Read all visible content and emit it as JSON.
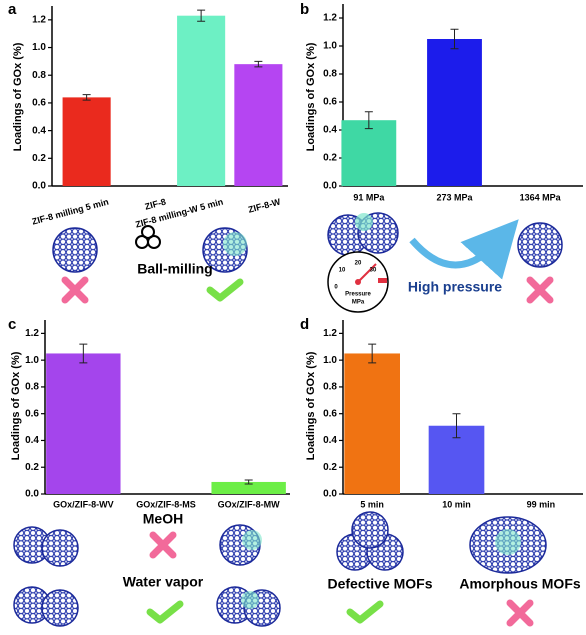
{
  "chart_data": [
    {
      "type": "bar",
      "panel_label": "a",
      "y_label": "Loadings of GOx (%)",
      "categories": [
        "ZIF-8 milling 5 min",
        "ZIF-8",
        "ZIF-8 milling-W 5 min",
        "ZIF-8-W"
      ],
      "values": [
        0.64,
        0,
        1.23,
        0.88
      ],
      "errors": [
        0.02,
        0,
        0.04,
        0.02
      ],
      "colors": [
        "#ea2a1e",
        "#ea2a1e",
        "#6df0c4",
        "#b545f2"
      ],
      "ylim": [
        0,
        1.3
      ],
      "yticks": [
        {
          "value": 0,
          "label": "0.0"
        },
        0.2,
        0.4,
        0.6,
        0.8,
        {
          "value": 1,
          "label": "1.0"
        },
        1.2
      ],
      "annotations": [
        "Ball-milling"
      ]
    },
    {
      "type": "bar",
      "panel_label": "b",
      "y_label": "Loadings of GOx (%)",
      "categories": [
        "91 MPa",
        "273 MPa",
        "1364 MPa"
      ],
      "values": [
        0.47,
        1.05,
        0
      ],
      "errors": [
        0.06,
        0.07,
        0
      ],
      "colors": [
        "#3fd8a4",
        "#1c1ceb",
        "#1c1ceb"
      ],
      "ylim": [
        0,
        1.3
      ],
      "yticks": [
        {
          "value": 0,
          "label": "0.0"
        },
        0.2,
        0.4,
        0.6,
        0.8,
        {
          "value": 1,
          "label": "1.0"
        },
        1.2
      ],
      "annotations": [
        "High pressure"
      ],
      "gauge_labels": [
        "0",
        "10",
        "20",
        "30",
        "Pressure",
        "MPa"
      ]
    },
    {
      "type": "bar",
      "panel_label": "c",
      "y_label": "Loadings of GOx (%)",
      "categories": [
        "GOx/ZIF-8-WV",
        "GOx/ZIF-8-MS",
        "GOx/ZIF-8-MW"
      ],
      "values": [
        1.05,
        0,
        0.09
      ],
      "errors": [
        0.07,
        0,
        0.015
      ],
      "colors": [
        "#a445ec",
        "#a445ec",
        "#6cee46"
      ],
      "ylim": [
        0,
        1.3
      ],
      "yticks": [
        {
          "value": 0,
          "label": "0.0"
        },
        0.2,
        0.4,
        0.6,
        0.8,
        {
          "value": 1,
          "label": "1.0"
        },
        1.2
      ],
      "annotations": [
        "MeOH",
        "Water vapor"
      ]
    },
    {
      "type": "bar",
      "panel_label": "d",
      "y_label": "Loadings of GOx (%)",
      "categories": [
        "5 min",
        "10 min",
        "99 min"
      ],
      "values": [
        1.05,
        0.51,
        0
      ],
      "errors": [
        0.07,
        0.09,
        0
      ],
      "colors": [
        "#f07312",
        "#5656f2",
        "#5656f2"
      ],
      "ylim": [
        0,
        1.3
      ],
      "yticks": [
        {
          "value": 0,
          "label": "0.0"
        },
        0.2,
        0.4,
        0.6,
        0.8,
        {
          "value": 1,
          "label": "1.0"
        },
        1.2
      ],
      "annotations": [
        "Defective MOFs",
        "Amorphous MOFs"
      ]
    }
  ]
}
